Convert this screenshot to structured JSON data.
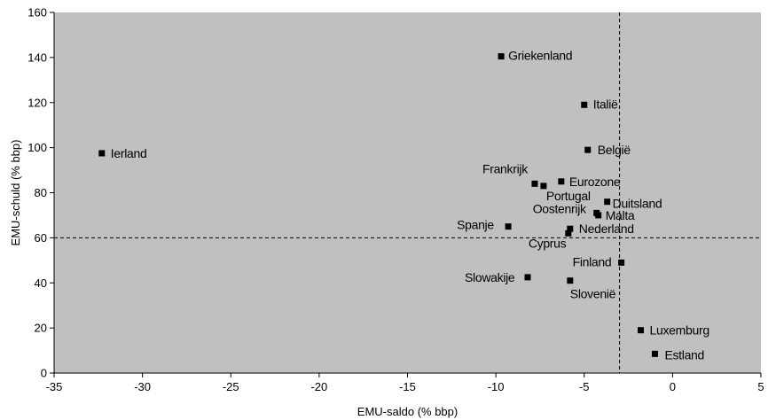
{
  "chart_data": {
    "type": "scatter",
    "title": "",
    "xlabel": "EMU-saldo (% bbp)",
    "ylabel": "EMU-schuld (% bbp)",
    "xlim": [
      -35,
      5
    ],
    "ylim": [
      0,
      160
    ],
    "xticks": [
      -35,
      -30,
      -25,
      -20,
      -15,
      -10,
      -5,
      0,
      5
    ],
    "yticks": [
      0,
      20,
      40,
      60,
      80,
      100,
      120,
      140,
      160
    ],
    "grid": false,
    "reference_lines": {
      "x": -3,
      "y": 60
    },
    "colors": {
      "plot_background": "#c0c0c0",
      "marker": "#000000",
      "reference_line": "#000000"
    },
    "points": [
      {
        "name": "Griekenland",
        "x": -9.7,
        "y": 140.5
      },
      {
        "name": "Italië",
        "x": -5.0,
        "y": 119
      },
      {
        "name": "Ierland",
        "x": -32.3,
        "y": 97.5
      },
      {
        "name": "België",
        "x": -4.8,
        "y": 99
      },
      {
        "name": "Frankrijk",
        "x": -7.8,
        "y": 84
      },
      {
        "name": "Portugal",
        "x": -7.3,
        "y": 83
      },
      {
        "name": "Eurozone",
        "x": -6.3,
        "y": 85
      },
      {
        "name": "Duitsland",
        "x": -3.7,
        "y": 76
      },
      {
        "name": "Oostenrijk",
        "x": -4.3,
        "y": 71
      },
      {
        "name": "Malta",
        "x": -4.2,
        "y": 70
      },
      {
        "name": "Spanje",
        "x": -9.3,
        "y": 65
      },
      {
        "name": "Nederland",
        "x": -5.8,
        "y": 64
      },
      {
        "name": "Cyprus",
        "x": -5.9,
        "y": 62
      },
      {
        "name": "Finland",
        "x": -2.9,
        "y": 49
      },
      {
        "name": "Slowakije",
        "x": -8.2,
        "y": 42.5
      },
      {
        "name": "Slovenië",
        "x": -5.8,
        "y": 41
      },
      {
        "name": "Luxemburg",
        "x": -1.8,
        "y": 19
      },
      {
        "name": "Estland",
        "x": -1.0,
        "y": 8.5
      }
    ]
  }
}
